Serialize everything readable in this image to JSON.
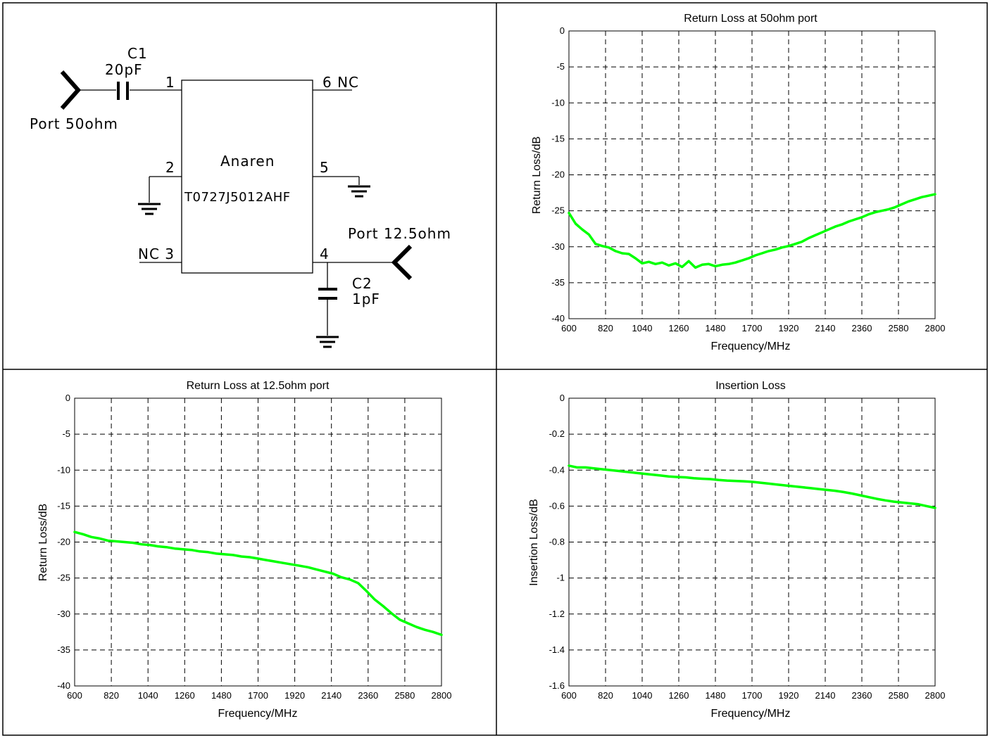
{
  "schematic": {
    "c1_label": "C1",
    "c1_value": "20pF",
    "port1_label": "Port  50ohm",
    "pin1": "1",
    "pin6": "6  NC",
    "pin2": "2",
    "pin5": "5",
    "pin3": "NC 3",
    "pin4": "4",
    "chip_maker": "Anaren",
    "chip_part": "T0727J5012AHF",
    "port2_label": "Port  12.5ohm",
    "c2_label": "C2",
    "c2_value": "1pF"
  },
  "chart_data": [
    {
      "type": "line",
      "title": "Return Loss at 50ohm port",
      "xlabel": "Frequency/MHz",
      "ylabel": "Return Loss/dB",
      "xlim": [
        600,
        2800
      ],
      "ylim": [
        -40,
        0
      ],
      "xticks": [
        "600",
        "820",
        "1040",
        "1260",
        "1480",
        "1700",
        "1920",
        "2140",
        "2360",
        "2580",
        "2800"
      ],
      "yticks": [
        "0",
        "-5",
        "-10",
        "-15",
        "-20",
        "-25",
        "-30",
        "-35",
        "-40"
      ],
      "grid": true,
      "color": "#00ff00",
      "series": [
        {
          "x": [
            600,
            640,
            680,
            720,
            760,
            800,
            840,
            880,
            920,
            960,
            1000,
            1040,
            1080,
            1120,
            1160,
            1200,
            1240,
            1280,
            1320,
            1360,
            1400,
            1440,
            1480,
            1520,
            1560,
            1600,
            1640,
            1680,
            1720,
            1760,
            1800,
            1840,
            1880,
            1920,
            1960,
            2000,
            2040,
            2080,
            2120,
            2160,
            2200,
            2240,
            2280,
            2320,
            2360,
            2400,
            2440,
            2480,
            2520,
            2560,
            2600,
            2640,
            2680,
            2720,
            2760,
            2800
          ],
          "y": [
            -25.3,
            -26.8,
            -27.6,
            -28.3,
            -29.6,
            -29.9,
            -30.1,
            -30.6,
            -30.9,
            -31.0,
            -31.6,
            -32.3,
            -32.1,
            -32.4,
            -32.2,
            -32.6,
            -32.3,
            -32.8,
            -32.0,
            -32.9,
            -32.5,
            -32.4,
            -32.7,
            -32.5,
            -32.4,
            -32.2,
            -31.9,
            -31.6,
            -31.2,
            -30.9,
            -30.6,
            -30.4,
            -30.1,
            -29.9,
            -29.6,
            -29.3,
            -28.8,
            -28.4,
            -28.0,
            -27.6,
            -27.2,
            -26.9,
            -26.5,
            -26.2,
            -25.9,
            -25.5,
            -25.2,
            -25.0,
            -24.8,
            -24.5,
            -24.1,
            -23.7,
            -23.4,
            -23.1,
            -22.9,
            -22.7
          ]
        }
      ]
    },
    {
      "type": "line",
      "title": "Return Loss at 12.5ohm port",
      "xlabel": "Frequency/MHz",
      "ylabel": "Return Loss/dB",
      "xlim": [
        600,
        2800
      ],
      "ylim": [
        -40,
        0
      ],
      "xticks": [
        "600",
        "820",
        "1040",
        "1260",
        "1480",
        "1700",
        "1920",
        "2140",
        "2360",
        "2580",
        "2800"
      ],
      "yticks": [
        "0",
        "-5",
        "-10",
        "-15",
        "-20",
        "-25",
        "-30",
        "-35",
        "-40"
      ],
      "grid": true,
      "color": "#00ff00",
      "series": [
        {
          "x": [
            600,
            650,
            700,
            750,
            800,
            850,
            900,
            950,
            1000,
            1050,
            1100,
            1150,
            1200,
            1250,
            1300,
            1350,
            1400,
            1450,
            1500,
            1550,
            1600,
            1650,
            1700,
            1750,
            1800,
            1850,
            1900,
            1950,
            2000,
            2050,
            2100,
            2150,
            2200,
            2250,
            2300,
            2350,
            2400,
            2450,
            2500,
            2550,
            2600,
            2650,
            2700,
            2750,
            2800
          ],
          "y": [
            -18.6,
            -18.9,
            -19.3,
            -19.5,
            -19.8,
            -19.9,
            -20.0,
            -20.1,
            -20.3,
            -20.4,
            -20.6,
            -20.7,
            -20.9,
            -21.0,
            -21.1,
            -21.3,
            -21.4,
            -21.6,
            -21.7,
            -21.8,
            -22.0,
            -22.1,
            -22.3,
            -22.5,
            -22.7,
            -22.9,
            -23.1,
            -23.3,
            -23.5,
            -23.8,
            -24.1,
            -24.4,
            -24.9,
            -25.2,
            -25.7,
            -26.8,
            -28.0,
            -28.9,
            -29.9,
            -30.8,
            -31.3,
            -31.8,
            -32.2,
            -32.5,
            -32.9
          ]
        }
      ]
    },
    {
      "type": "line",
      "title": "Insertion Loss",
      "xlabel": "Frequency/MHz",
      "ylabel": "Insertion Loss/dB",
      "xlim": [
        600,
        2800
      ],
      "ylim": [
        -1.6,
        0
      ],
      "xticks": [
        "600",
        "820",
        "1040",
        "1260",
        "1480",
        "1700",
        "1920",
        "2140",
        "2360",
        "2580",
        "2800"
      ],
      "yticks": [
        "0",
        "-0.2",
        "-0.4",
        "-0.6",
        "-0.8",
        "-1",
        "-1.2",
        "-1.4",
        "-1.6"
      ],
      "grid": true,
      "color": "#00ff00",
      "series": [
        {
          "x": [
            600,
            650,
            700,
            750,
            800,
            850,
            900,
            950,
            1000,
            1050,
            1100,
            1150,
            1200,
            1250,
            1300,
            1350,
            1400,
            1450,
            1500,
            1550,
            1600,
            1650,
            1700,
            1750,
            1800,
            1850,
            1900,
            1950,
            2000,
            2050,
            2100,
            2150,
            2200,
            2250,
            2300,
            2350,
            2400,
            2450,
            2500,
            2550,
            2600,
            2650,
            2700,
            2750,
            2800
          ],
          "y": [
            -0.375,
            -0.385,
            -0.385,
            -0.39,
            -0.395,
            -0.4,
            -0.405,
            -0.41,
            -0.415,
            -0.42,
            -0.425,
            -0.43,
            -0.435,
            -0.438,
            -0.44,
            -0.445,
            -0.448,
            -0.45,
            -0.455,
            -0.458,
            -0.46,
            -0.462,
            -0.465,
            -0.47,
            -0.475,
            -0.48,
            -0.485,
            -0.49,
            -0.495,
            -0.5,
            -0.505,
            -0.51,
            -0.515,
            -0.522,
            -0.53,
            -0.54,
            -0.55,
            -0.56,
            -0.568,
            -0.575,
            -0.58,
            -0.585,
            -0.59,
            -0.6,
            -0.61
          ]
        }
      ]
    }
  ]
}
